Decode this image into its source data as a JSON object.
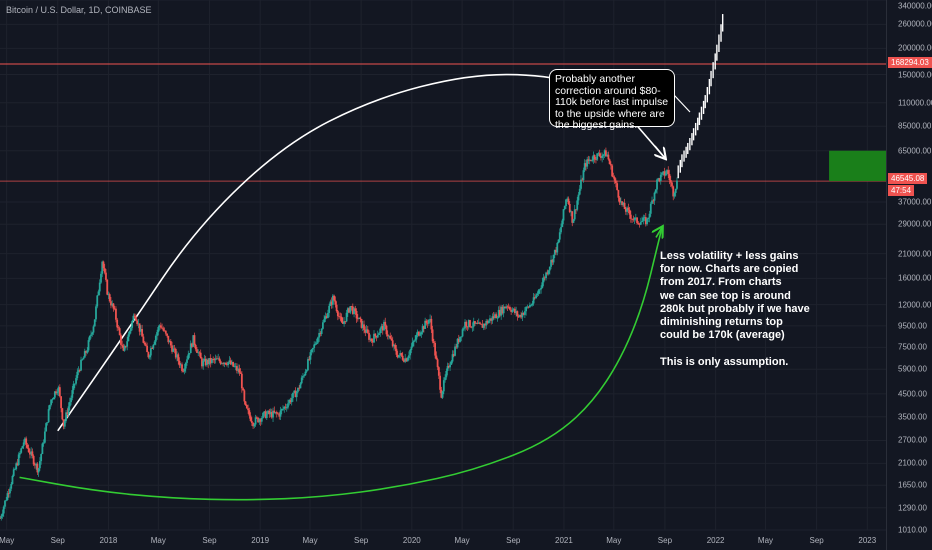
{
  "header": {
    "title": "Bitcoin / U.S. Dollar, 1D, COINBASE"
  },
  "colors": {
    "background": "#131722",
    "candle_up": "#26a69a",
    "candle_down": "#ef5350",
    "horizontal_line": "#ef5350",
    "projection_box": "#1a7f1a",
    "white_arc": "#ffffff",
    "green_arc": "#33cc33",
    "projection_bars": "#ffffff"
  },
  "annotations": {
    "callout": "Probably another correction around $80-110k before last impulse to the upside where are the biggest gains.",
    "note": "Less volatility + less gains\nfor now. Charts are copied\nfrom 2017. From charts\nwe can see top is around\n280k but probably if we have\ndiminishing returns top\ncould be 170k (average)\n\nThis is only assumption."
  },
  "price_tags": {
    "upper_line": "168294.03",
    "current_price": "46545.08",
    "countdown": "47:54"
  },
  "chart_data": {
    "type": "line",
    "title": "Bitcoin / U.S. Dollar, 1D, COINBASE",
    "xlabel": "",
    "ylabel": "",
    "y_scale": "log",
    "ylim": [
      1010,
      340000
    ],
    "x_range": [
      "2017-04-15",
      "2023-02-15"
    ],
    "x_tick_labels": [
      "May",
      "Sep",
      "2018",
      "May",
      "Sep",
      "2019",
      "May",
      "Sep",
      "2020",
      "May",
      "Sep",
      "2021",
      "May",
      "Sep",
      "2022",
      "May",
      "Sep",
      "2023"
    ],
    "y_tick_labels": [
      "340000.00",
      "260000.00",
      "200000.00",
      "150000.00",
      "110000.00",
      "85000.00",
      "65000.00",
      "37000.00",
      "29000.00",
      "21000.00",
      "16000.00",
      "12000.00",
      "9500.00",
      "7500.00",
      "5900.00",
      "4500.00",
      "3500.00",
      "2700.00",
      "2100.00",
      "1650.00",
      "1290.00",
      "1010.00"
    ],
    "horizontal_lines": [
      168294.03,
      46545.08
    ],
    "series": [
      {
        "key": "price",
        "dates": [
          "2017-04-15",
          "2017-05-15",
          "2017-06-12",
          "2017-07-16",
          "2017-08-15",
          "2017-09-02",
          "2017-09-15",
          "2017-10-20",
          "2017-11-10",
          "2017-11-28",
          "2017-12-17",
          "2017-12-30",
          "2018-01-16",
          "2018-02-06",
          "2018-03-05",
          "2018-04-06",
          "2018-05-05",
          "2018-06-29",
          "2018-07-24",
          "2018-08-14",
          "2018-09-15",
          "2018-10-15",
          "2018-11-14",
          "2018-11-25",
          "2018-12-15",
          "2019-01-15",
          "2019-02-15",
          "2019-04-02",
          "2019-05-15",
          "2019-06-26",
          "2019-07-17",
          "2019-08-06",
          "2019-09-25",
          "2019-10-26",
          "2019-11-25",
          "2019-12-18",
          "2020-01-15",
          "2020-02-13",
          "2020-03-12",
          "2020-03-30",
          "2020-05-08",
          "2020-06-15",
          "2020-07-27",
          "2020-08-17",
          "2020-09-15",
          "2020-10-21",
          "2020-11-25",
          "2020-12-17",
          "2021-01-08",
          "2021-01-22",
          "2021-02-21",
          "2021-03-13",
          "2021-04-14",
          "2021-05-19",
          "2021-06-22",
          "2021-07-20",
          "2021-08-14",
          "2021-09-07",
          "2021-09-21",
          "2021-10-01"
        ],
        "values": [
          1150,
          1800,
          2700,
          1950,
          4200,
          4900,
          3200,
          5800,
          7300,
          10000,
          19500,
          13500,
          11000,
          7000,
          11000,
          6800,
          9700,
          5900,
          8200,
          6300,
          6500,
          6400,
          5700,
          3900,
          3300,
          3600,
          3600,
          4700,
          8000,
          13000,
          9500,
          11800,
          8100,
          9500,
          7000,
          6600,
          8700,
          10300,
          4500,
          6200,
          9800,
          9400,
          10900,
          12000,
          10500,
          12500,
          18000,
          23000,
          40000,
          30000,
          56000,
          61000,
          63000,
          36000,
          30000,
          30000,
          47000,
          52000,
          41000,
          46545
        ],
        "style": "candlesticks"
      },
      {
        "key": "projection",
        "dates": [
          "2021-10-01",
          "2021-10-15",
          "2021-10-29",
          "2021-11-12",
          "2021-11-26",
          "2021-12-10",
          "2021-12-24",
          "2022-01-07",
          "2022-01-21"
        ],
        "values": [
          50000,
          60000,
          68000,
          80000,
          95000,
          115000,
          150000,
          200000,
          280000
        ],
        "style": "white range bars"
      }
    ],
    "arcs": [
      {
        "key": "white_arc",
        "dates": [
          "2017-09-01",
          "2018-02-15",
          "2018-08-01",
          "2019-03-01",
          "2019-10-01",
          "2020-05-15",
          "2020-11-15",
          "2021-04-15",
          "2021-09-01"
        ],
        "values": [
          3000,
          9000,
          28000,
          70000,
          115000,
          150000,
          150000,
          125000,
          60000
        ]
      },
      {
        "key": "green_arc",
        "dates": [
          "2017-06-01",
          "2017-12-01",
          "2018-06-01",
          "2018-12-01",
          "2019-06-01",
          "2019-12-01",
          "2020-06-01",
          "2020-12-01",
          "2021-04-01",
          "2021-07-01",
          "2021-08-25"
        ],
        "values": [
          1800,
          1550,
          1430,
          1400,
          1450,
          1620,
          1950,
          2700,
          4500,
          10000,
          28000
        ]
      }
    ],
    "projection_box": {
      "date_from": "2022-10-01",
      "date_to": "2023-02-15",
      "value_from": 46545,
      "value_to": 65000
    }
  }
}
